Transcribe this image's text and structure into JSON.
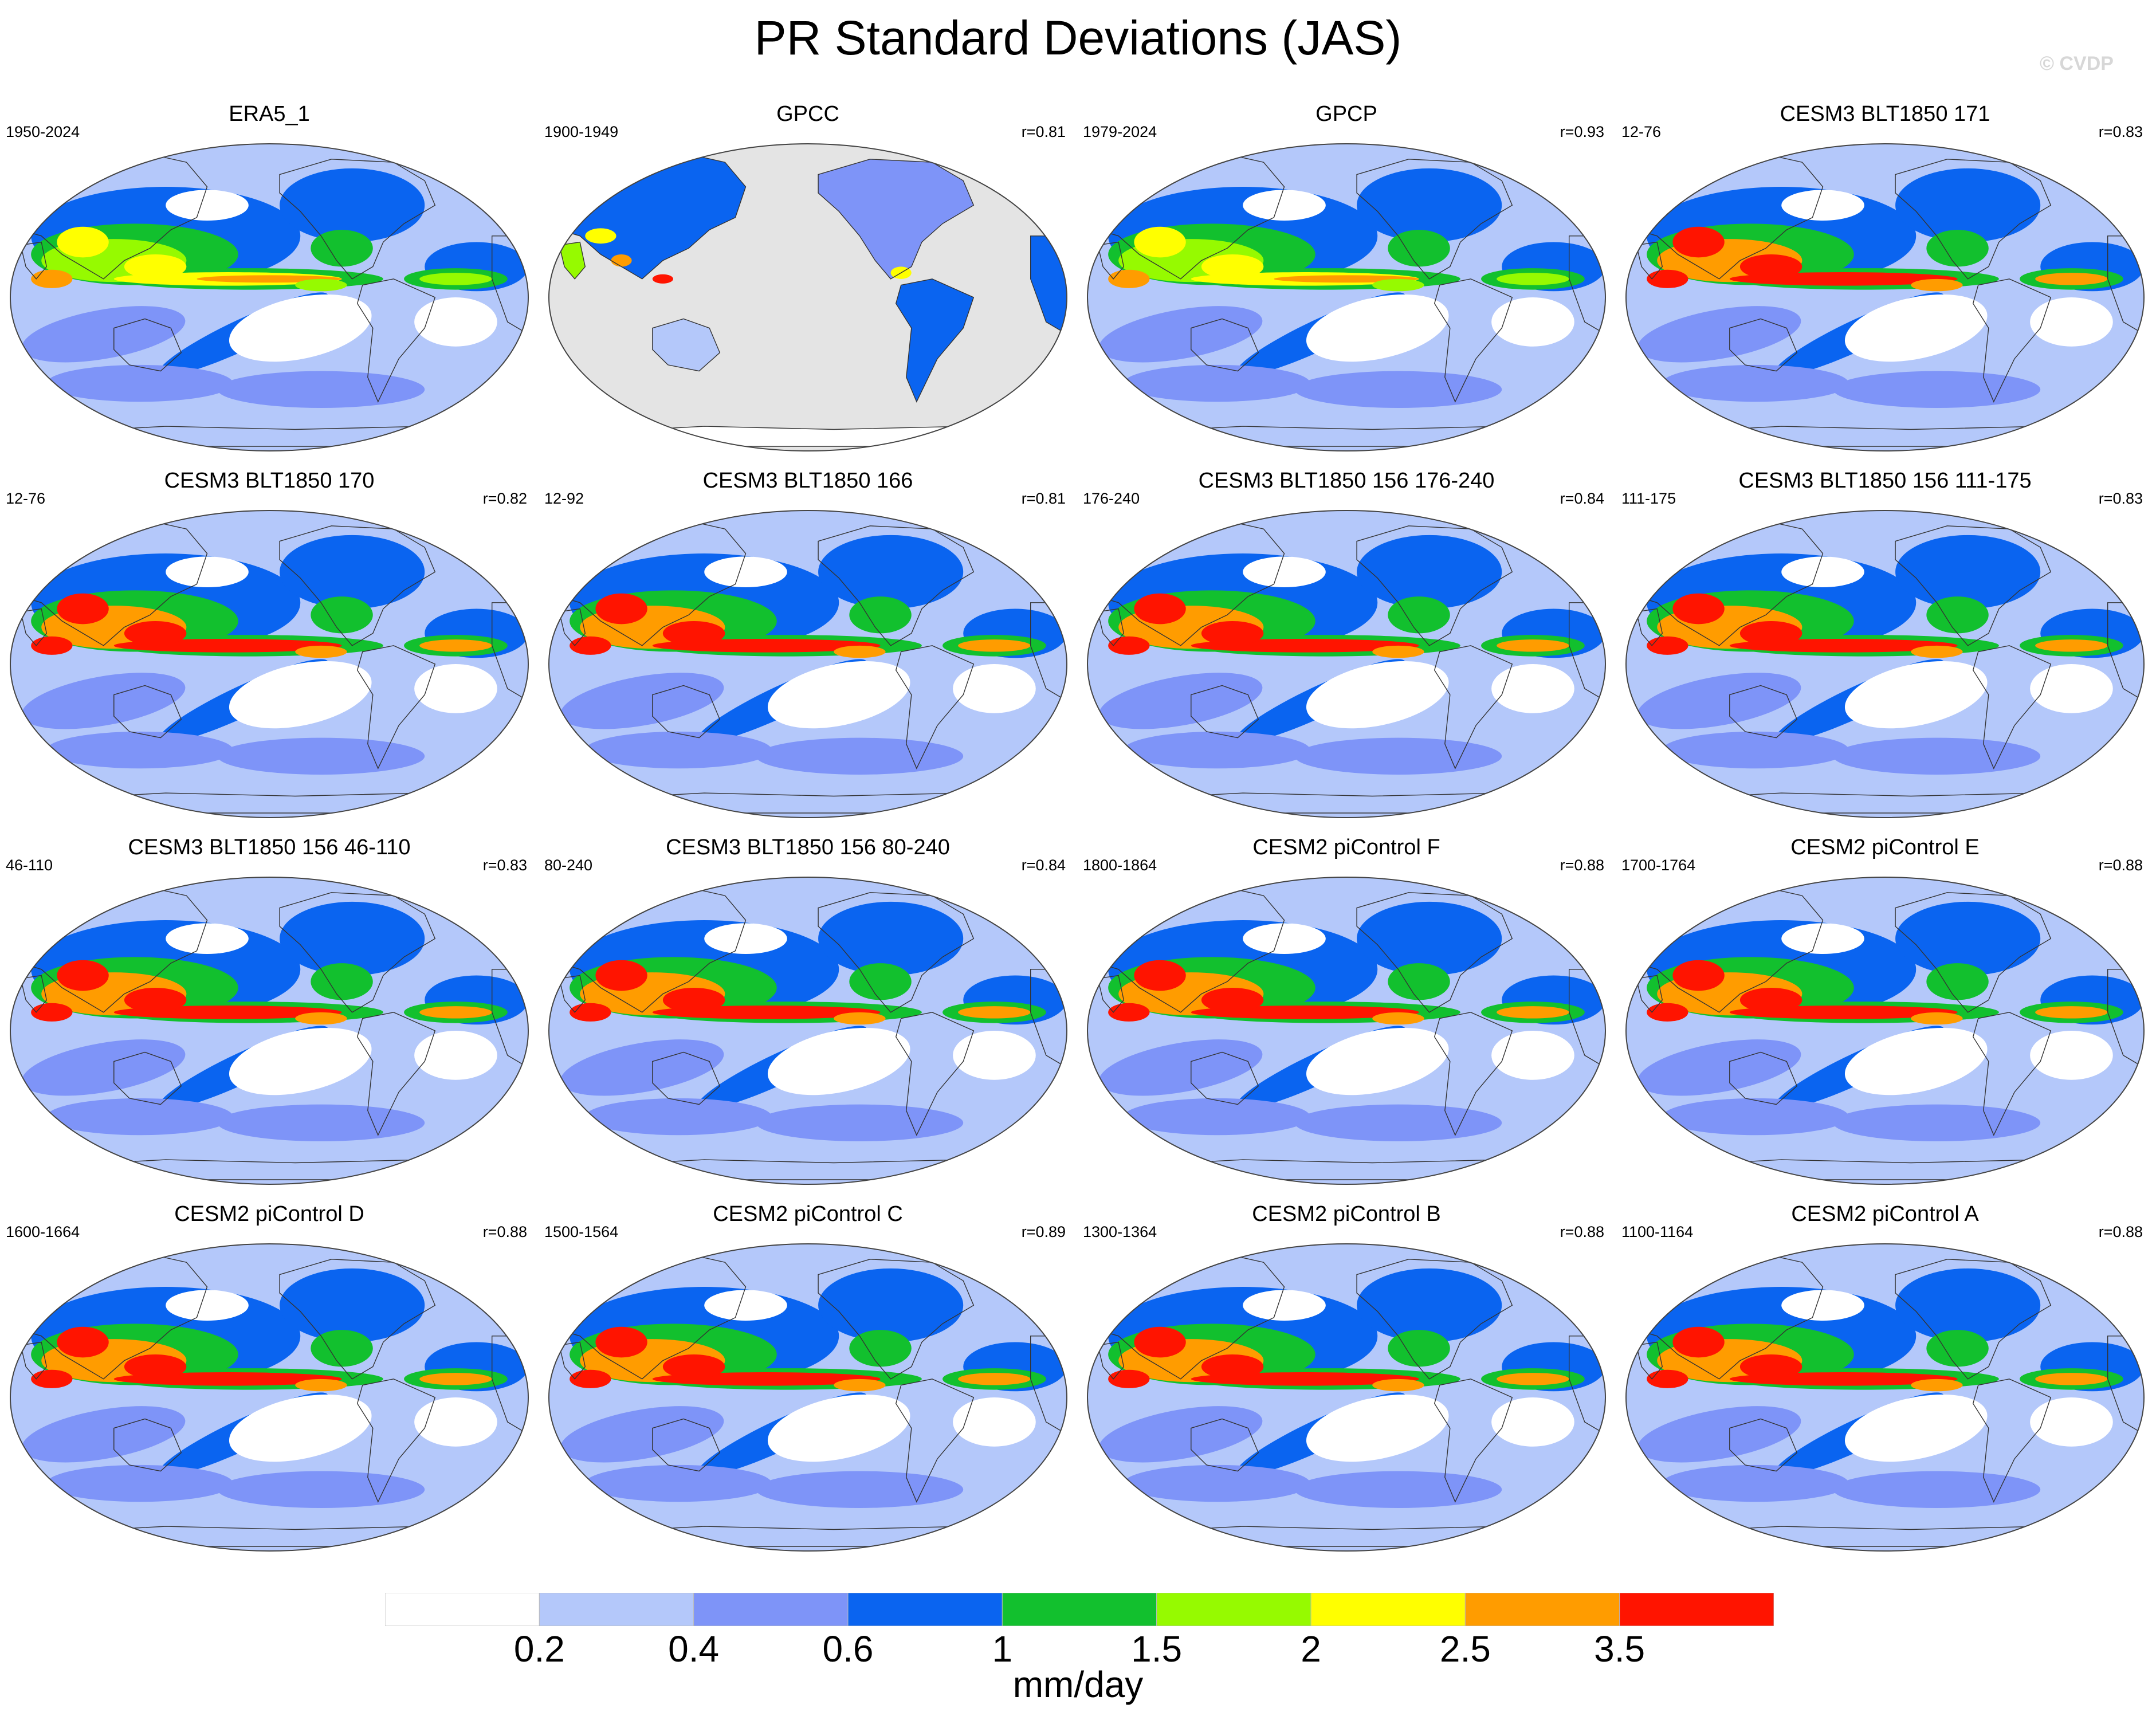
{
  "title": "PR Standard Deviations (JAS)",
  "watermark": "© CVDP",
  "colorbar": {
    "colors": [
      "#ffffff",
      "#b4c8fa",
      "#7e94f8",
      "#0a64f0",
      "#12c02e",
      "#96fa00",
      "#ffff00",
      "#ff9c00",
      "#ff1400"
    ],
    "labels": [
      "0.2",
      "0.4",
      "0.6",
      "1",
      "1.5",
      "2",
      "2.5",
      "3.5"
    ],
    "units": "mm/day"
  },
  "map_colors": {
    "ocean_masked": "#e4e4e4",
    "coast": "#333333"
  },
  "panels": [
    {
      "title": "ERA5_1",
      "period": "1950-2024",
      "corr": "",
      "masked": false
    },
    {
      "title": "GPCC",
      "period": "1900-1949",
      "corr": "r=0.81",
      "masked": true
    },
    {
      "title": "GPCP",
      "period": "1979-2024",
      "corr": "r=0.93",
      "masked": false
    },
    {
      "title": "CESM3 BLT1850 171",
      "period": "12-76",
      "corr": "r=0.83",
      "masked": false
    },
    {
      "title": "CESM3 BLT1850 170",
      "period": "12-76",
      "corr": "r=0.82",
      "masked": false
    },
    {
      "title": "CESM3 BLT1850 166",
      "period": "12-92",
      "corr": "r=0.81",
      "masked": false
    },
    {
      "title": "CESM3 BLT1850 156 176-240",
      "period": "176-240",
      "corr": "r=0.84",
      "masked": false
    },
    {
      "title": "CESM3 BLT1850 156 111-175",
      "period": "111-175",
      "corr": "r=0.83",
      "masked": false
    },
    {
      "title": "CESM3 BLT1850 156 46-110",
      "period": "46-110",
      "corr": "r=0.83",
      "masked": false
    },
    {
      "title": "CESM3 BLT1850 156 80-240",
      "period": "80-240",
      "corr": "r=0.84",
      "masked": false
    },
    {
      "title": "CESM2 piControl F",
      "period": "1800-1864",
      "corr": "r=0.88",
      "masked": false
    },
    {
      "title": "CESM2 piControl E",
      "period": "1700-1764",
      "corr": "r=0.88",
      "masked": false
    },
    {
      "title": "CESM2 piControl D",
      "period": "1600-1664",
      "corr": "r=0.88",
      "masked": false
    },
    {
      "title": "CESM2 piControl C",
      "period": "1500-1564",
      "corr": "r=0.89",
      "masked": false
    },
    {
      "title": "CESM2 piControl B",
      "period": "1300-1364",
      "corr": "r=0.88",
      "masked": false
    },
    {
      "title": "CESM2 piControl A",
      "period": "1100-1164",
      "corr": "r=0.88",
      "masked": false
    }
  ]
}
